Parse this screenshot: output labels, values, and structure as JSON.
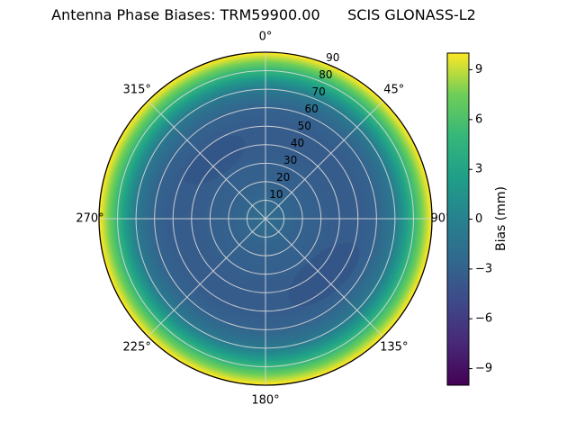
{
  "title": "Antenna Phase Biases: TRM59900.00      SCIS GLONASS-L2",
  "chart_data": {
    "type": "heatmap",
    "projection": "polar",
    "title": "Antenna Phase Biases: TRM59900.00      SCIS GLONASS-L2",
    "theta_labels": [
      "0°",
      "45°",
      "90°",
      "135°",
      "180°",
      "225°",
      "270°",
      "315°"
    ],
    "r_tick_labels": [
      "10",
      "20",
      "30",
      "40",
      "50",
      "60",
      "70",
      "80",
      "90"
    ],
    "r_max_deg": 90,
    "r_label_angle_deg": 22.5,
    "radial_profile": {
      "zenith_deg": [
        0,
        10,
        20,
        30,
        40,
        50,
        60,
        70,
        75,
        80,
        85,
        90
      ],
      "bias_mm": [
        -2.0,
        -2.5,
        -3.0,
        -3.2,
        -3.5,
        -3.5,
        -3.0,
        -1.0,
        1.5,
        4.5,
        7.5,
        10.0
      ]
    },
    "colorbar": {
      "label": "Bias (mm)",
      "ticks": [
        "9",
        "6",
        "3",
        "0",
        "−3",
        "−6",
        "−9"
      ],
      "tick_values": [
        9,
        6,
        3,
        0,
        -3,
        -6,
        -9
      ],
      "vmin": -10,
      "vmax": 10
    },
    "colormap": {
      "name": "viridis",
      "stops": [
        {
          "t": 0.0,
          "color": "#440154"
        },
        {
          "t": 0.125,
          "color": "#482878"
        },
        {
          "t": 0.25,
          "color": "#3e4989"
        },
        {
          "t": 0.375,
          "color": "#31688e"
        },
        {
          "t": 0.5,
          "color": "#26828e"
        },
        {
          "t": 0.625,
          "color": "#1f9e89"
        },
        {
          "t": 0.75,
          "color": "#35b779"
        },
        {
          "t": 0.875,
          "color": "#6ece58"
        },
        {
          "t": 1.0,
          "color": "#fde725"
        }
      ]
    },
    "grid": {
      "color": "#d8d8d8",
      "spokes_deg": [
        0,
        45,
        90,
        135,
        180,
        225,
        270,
        315
      ]
    },
    "colors": {
      "background": "#ffffff",
      "edge": "#000000",
      "text": "#000000"
    }
  }
}
